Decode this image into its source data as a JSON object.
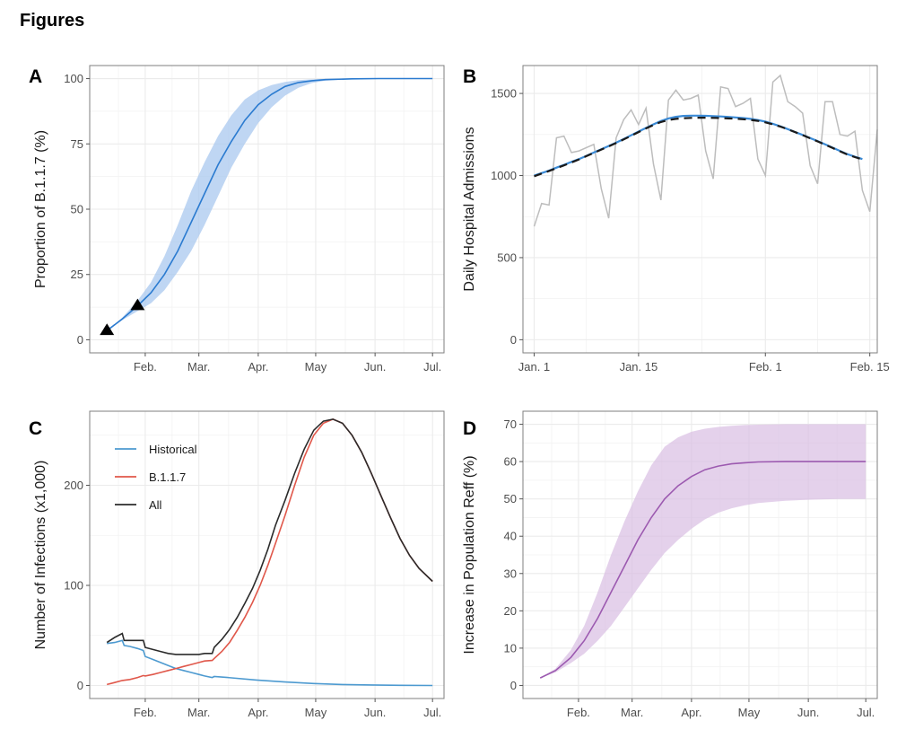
{
  "page": {
    "heading": "Figures"
  },
  "chart_data": [
    {
      "panel": "A",
      "type": "line",
      "title": "",
      "xlabel": "",
      "ylabel": "Proportion of B.1.1.7 (%)",
      "x_unit": "day of year 2021",
      "xlim": [
        3,
        188
      ],
      "ylim": [
        -5,
        105
      ],
      "yticks": [
        0,
        25,
        50,
        75,
        100
      ],
      "xticks": [
        {
          "label": "Feb.",
          "day": 32
        },
        {
          "label": "Mar.",
          "day": 60
        },
        {
          "label": "Apr.",
          "day": 91
        },
        {
          "label": "May",
          "day": 121
        },
        {
          "label": "Jun.",
          "day": 152
        },
        {
          "label": "Jul.",
          "day": 182
        }
      ],
      "grid": true,
      "colors": {
        "line": "#2b7bd0",
        "ribbon": "#a9c8ef"
      },
      "series": [
        {
          "name": "median",
          "x": [
            12,
            20,
            28,
            35,
            42,
            49,
            56,
            63,
            70,
            77,
            84,
            91,
            98,
            105,
            112,
            119,
            126,
            140,
            154,
            168,
            182
          ],
          "values": [
            3.5,
            8,
            13,
            18,
            25,
            34,
            45,
            56,
            67,
            76,
            84,
            90,
            94,
            97,
            98.5,
            99.2,
            99.6,
            99.9,
            100,
            100,
            100
          ]
        },
        {
          "name": "lower",
          "x": [
            12,
            20,
            28,
            35,
            42,
            49,
            56,
            63,
            70,
            77,
            84,
            91,
            98,
            105,
            112,
            119,
            126,
            140,
            154,
            168,
            182
          ],
          "values": [
            3.5,
            7.5,
            11,
            14,
            19,
            26,
            34,
            44,
            55,
            66,
            75,
            83,
            89,
            93.5,
            96.5,
            98.3,
            99.2,
            99.8,
            100,
            100,
            100
          ]
        },
        {
          "name": "upper",
          "x": [
            12,
            20,
            28,
            35,
            42,
            49,
            56,
            63,
            70,
            77,
            84,
            91,
            98,
            105,
            112,
            119,
            126,
            140,
            154,
            168,
            182
          ],
          "values": [
            3.5,
            8.5,
            15,
            22,
            32,
            44,
            57,
            68,
            78,
            86,
            92,
            95.5,
            97.5,
            98.7,
            99.4,
            99.7,
            99.9,
            100,
            100,
            100,
            100
          ]
        }
      ],
      "markers": [
        {
          "shape": "triangle",
          "x": 12,
          "y": 3.5
        },
        {
          "shape": "triangle",
          "x": 28,
          "y": 13
        }
      ]
    },
    {
      "panel": "B",
      "type": "line",
      "title": "",
      "xlabel": "",
      "ylabel": "Daily Hospital Admissions",
      "x_unit": "day index (Jan. 1 = 0)",
      "xlim": [
        -1.5,
        46
      ],
      "ylim": [
        -80,
        1670
      ],
      "yticks": [
        0,
        500,
        1000,
        1500
      ],
      "xticks": [
        {
          "label": "Jan. 1",
          "day": 0
        },
        {
          "label": "Jan. 15",
          "day": 14
        },
        {
          "label": "Feb. 1",
          "day": 31
        },
        {
          "label": "Feb. 15",
          "day": 45
        }
      ],
      "grid": true,
      "colors": {
        "observed": "#bdbdbd",
        "fitted": "#3a8ad6",
        "model": "#1a1a1a"
      },
      "series": [
        {
          "name": "observed daily admissions",
          "style": "grey-line",
          "values": [
            690,
            830,
            820,
            1230,
            1240,
            1140,
            1150,
            1170,
            1190,
            920,
            740,
            1230,
            1340,
            1400,
            1310,
            1410,
            1070,
            850,
            1460,
            1520,
            1460,
            1470,
            1490,
            1150,
            980,
            1540,
            1530,
            1420,
            1440,
            1470,
            1100,
            1000,
            1570,
            1610,
            1450,
            1420,
            1380,
            1060,
            950,
            1450,
            1450,
            1250,
            1240,
            1270,
            910,
            780,
            1280
          ]
        },
        {
          "name": "smoothed fit",
          "style": "blue-solid",
          "values": [
            1000,
            1015,
            1030,
            1048,
            1065,
            1083,
            1100,
            1120,
            1140,
            1160,
            1180,
            1200,
            1222,
            1245,
            1268,
            1290,
            1312,
            1332,
            1348,
            1358,
            1363,
            1365,
            1365,
            1364,
            1362,
            1360,
            1357,
            1354,
            1350,
            1345,
            1338,
            1328,
            1315,
            1300,
            1283,
            1265,
            1247,
            1228,
            1210,
            1190,
            1170,
            1150,
            1130,
            1115,
            1100
          ]
        },
        {
          "name": "model",
          "style": "black-dashed",
          "values": [
            995,
            1012,
            1028,
            1045,
            1062,
            1080,
            1098,
            1118,
            1138,
            1158,
            1178,
            1198,
            1220,
            1242,
            1265,
            1287,
            1308,
            1326,
            1338,
            1345,
            1349,
            1351,
            1352,
            1352,
            1351,
            1350,
            1348,
            1346,
            1343,
            1339,
            1333,
            1324,
            1312,
            1298,
            1282,
            1264,
            1246,
            1227,
            1208,
            1188,
            1168,
            1148,
            1128,
            1112,
            1098
          ]
        }
      ]
    },
    {
      "panel": "C",
      "type": "line",
      "title": "",
      "xlabel": "",
      "ylabel": "Number of Infections (x1,000)",
      "x_unit": "day of year 2021",
      "xlim": [
        3,
        188
      ],
      "ylim": [
        -13,
        274
      ],
      "yticks": [
        0,
        100,
        200
      ],
      "xticks": [
        {
          "label": "Feb.",
          "day": 32
        },
        {
          "label": "Mar.",
          "day": 60
        },
        {
          "label": "Apr.",
          "day": 91
        },
        {
          "label": "May",
          "day": 121
        },
        {
          "label": "Jun.",
          "day": 152
        },
        {
          "label": "Jul.",
          "day": 182
        }
      ],
      "grid": true,
      "legend": {
        "position": "top-left",
        "entries": [
          {
            "label": "Historical",
            "color": "#4d9ad0"
          },
          {
            "label": "B.1.1.7",
            "color": "#e0574a"
          },
          {
            "label": "All",
            "color": "#2b2b2b"
          }
        ]
      },
      "series": [
        {
          "name": "Historical",
          "color": "#4d9ad0",
          "x": [
            12,
            16,
            20,
            21,
            24,
            28,
            31,
            32,
            36,
            40,
            44,
            48,
            52,
            56,
            60,
            63,
            67,
            68,
            75,
            90,
            105,
            120,
            135,
            150,
            165,
            182
          ],
          "values": [
            42,
            43,
            45,
            40,
            39,
            37,
            35,
            29,
            26,
            23,
            20,
            17,
            15,
            13,
            11,
            9.5,
            8,
            9,
            8,
            5.5,
            3.5,
            2,
            1,
            0.5,
            0.2,
            0
          ]
        },
        {
          "name": "B.1.1.7",
          "color": "#e0574a",
          "x": [
            12,
            16,
            20,
            24,
            28,
            31,
            32,
            36,
            40,
            44,
            48,
            52,
            56,
            60,
            63,
            67,
            68,
            72,
            76,
            80,
            84,
            88,
            92,
            96,
            100,
            105,
            110,
            115,
            120,
            125,
            130,
            135,
            140,
            145,
            150,
            155,
            160,
            165,
            170,
            175,
            182
          ],
          "values": [
            1,
            3,
            5,
            6,
            8,
            10,
            9.5,
            11,
            13,
            15,
            17,
            19,
            21,
            23,
            24.5,
            25,
            27,
            34,
            43,
            55,
            68,
            83,
            100,
            120,
            142,
            170,
            200,
            228,
            250,
            262,
            266,
            262,
            250,
            233,
            212,
            190,
            168,
            147,
            130,
            117,
            104
          ]
        },
        {
          "name": "All",
          "color": "#2b2b2b",
          "x": [
            12,
            16,
            20,
            21,
            24,
            28,
            31,
            32,
            36,
            40,
            44,
            48,
            52,
            56,
            60,
            63,
            67,
            68,
            72,
            76,
            80,
            84,
            88,
            92,
            96,
            100,
            105,
            110,
            115,
            120,
            125,
            130,
            135,
            140,
            145,
            150,
            155,
            160,
            165,
            170,
            175,
            182
          ],
          "values": [
            43,
            48,
            52,
            45,
            45,
            45,
            45,
            38,
            36,
            34,
            32,
            31,
            31,
            31,
            31,
            32,
            32,
            38,
            46,
            56,
            68,
            82,
            97,
            115,
            136,
            160,
            185,
            212,
            236,
            255,
            264,
            266,
            262,
            250,
            233,
            212,
            190,
            168,
            147,
            130,
            117,
            104
          ]
        }
      ]
    },
    {
      "panel": "D",
      "type": "line",
      "title": "",
      "xlabel": "",
      "ylabel": "Increase in Population Reff (%)",
      "x_unit": "day of year 2021",
      "xlim": [
        3,
        188
      ],
      "ylim": [
        -3.5,
        73.5
      ],
      "yticks": [
        0,
        10,
        20,
        30,
        40,
        50,
        60,
        70
      ],
      "xticks": [
        {
          "label": "Feb.",
          "day": 32
        },
        {
          "label": "Mar.",
          "day": 60
        },
        {
          "label": "Apr.",
          "day": 91
        },
        {
          "label": "May",
          "day": 121
        },
        {
          "label": "Jun.",
          "day": 152
        },
        {
          "label": "Jul.",
          "day": 182
        }
      ],
      "grid": true,
      "colors": {
        "line": "#9c5ab0",
        "ribbon": "#d8bde3"
      },
      "series": [
        {
          "name": "median",
          "x": [
            12,
            20,
            28,
            35,
            42,
            49,
            56,
            63,
            70,
            77,
            84,
            91,
            98,
            105,
            112,
            119,
            126,
            140,
            154,
            168,
            182
          ],
          "values": [
            2,
            4,
            7.5,
            12,
            18,
            25,
            32,
            39,
            45,
            50,
            53.5,
            56,
            57.8,
            58.8,
            59.4,
            59.7,
            59.9,
            60,
            60,
            60,
            60
          ]
        },
        {
          "name": "lower",
          "x": [
            12,
            20,
            28,
            35,
            42,
            49,
            56,
            63,
            70,
            77,
            84,
            91,
            98,
            105,
            112,
            119,
            126,
            140,
            154,
            168,
            182
          ],
          "values": [
            2,
            3.5,
            6,
            8.5,
            12,
            16,
            21,
            26,
            31,
            35.5,
            39,
            42,
            44.5,
            46.3,
            47.5,
            48.3,
            48.9,
            49.5,
            49.8,
            50,
            50
          ]
        },
        {
          "name": "upper",
          "x": [
            12,
            20,
            28,
            35,
            42,
            49,
            56,
            63,
            70,
            77,
            84,
            91,
            98,
            105,
            112,
            119,
            126,
            140,
            154,
            168,
            182
          ],
          "values": [
            2,
            4.5,
            9.5,
            16,
            25,
            35,
            44,
            52,
            59,
            64,
            66.5,
            68,
            68.8,
            69.3,
            69.6,
            69.8,
            69.9,
            70,
            70,
            70,
            70
          ]
        }
      ]
    }
  ]
}
